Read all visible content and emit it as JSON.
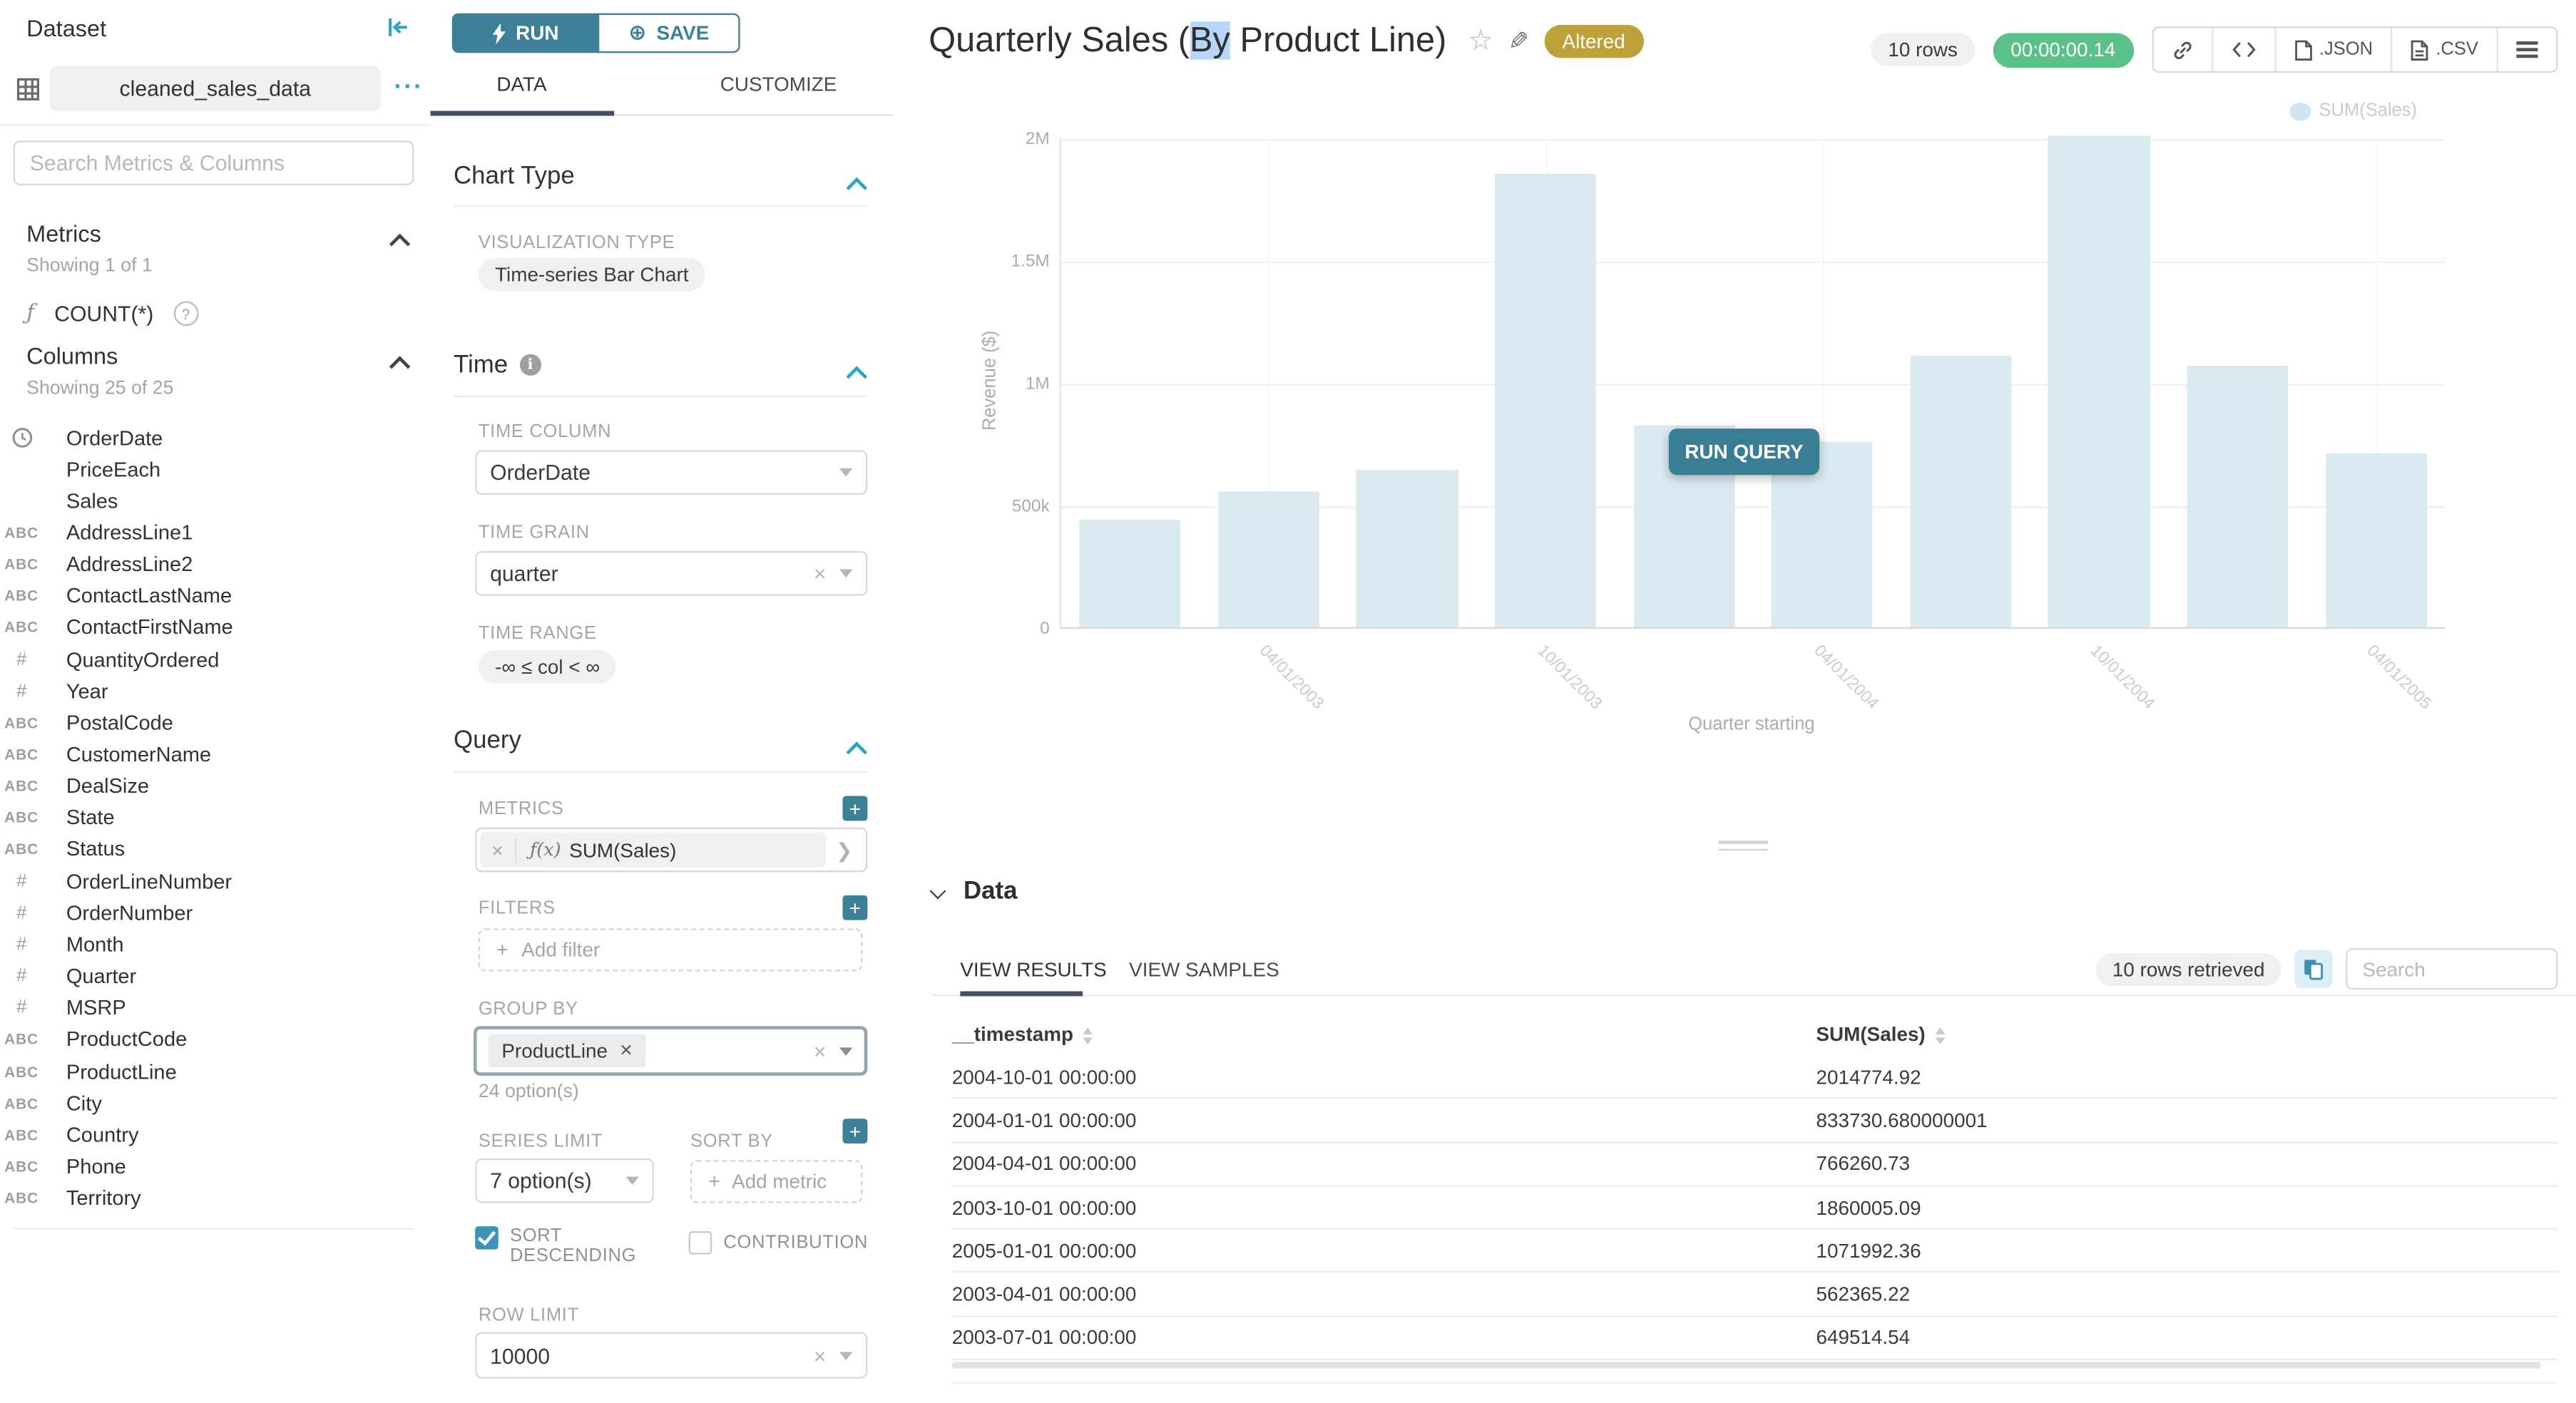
{
  "dataset_panel": {
    "title": "Dataset",
    "dataset_name": "cleaned_sales_data",
    "menu_dots": "···",
    "search_placeholder": "Search Metrics & Columns",
    "metrics": {
      "title": "Metrics",
      "showing": "Showing 1 of 1",
      "items": [
        {
          "icon": "function-icon",
          "label": "COUNT(*)"
        }
      ]
    },
    "columns": {
      "title": "Columns",
      "showing": "Showing 25 of 25",
      "items": [
        {
          "type": "time",
          "label": "OrderDate"
        },
        {
          "type": "none",
          "label": "PriceEach"
        },
        {
          "type": "none",
          "label": "Sales"
        },
        {
          "type": "str",
          "label": "AddressLine1"
        },
        {
          "type": "str",
          "label": "AddressLine2"
        },
        {
          "type": "str",
          "label": "ContactLastName"
        },
        {
          "type": "str",
          "label": "ContactFirstName"
        },
        {
          "type": "num",
          "label": "QuantityOrdered"
        },
        {
          "type": "num",
          "label": "Year"
        },
        {
          "type": "str",
          "label": "PostalCode"
        },
        {
          "type": "str",
          "label": "CustomerName"
        },
        {
          "type": "str",
          "label": "DealSize"
        },
        {
          "type": "str",
          "label": "State"
        },
        {
          "type": "str",
          "label": "Status"
        },
        {
          "type": "num",
          "label": "OrderLineNumber"
        },
        {
          "type": "num",
          "label": "OrderNumber"
        },
        {
          "type": "num",
          "label": "Month"
        },
        {
          "type": "num",
          "label": "Quarter"
        },
        {
          "type": "num",
          "label": "MSRP"
        },
        {
          "type": "str",
          "label": "ProductCode"
        },
        {
          "type": "str",
          "label": "ProductLine"
        },
        {
          "type": "str",
          "label": "City"
        },
        {
          "type": "str",
          "label": "Country"
        },
        {
          "type": "str",
          "label": "Phone"
        },
        {
          "type": "str",
          "label": "Territory"
        }
      ]
    }
  },
  "controls": {
    "run_label": "RUN",
    "save_label": "SAVE",
    "tab_data": "DATA",
    "tab_customize": "CUSTOMIZE",
    "chart_type": {
      "title": "Chart Type",
      "viz_label": "VISUALIZATION TYPE",
      "viz_value": "Time-series Bar Chart"
    },
    "time": {
      "title": "Time",
      "column_label": "TIME COLUMN",
      "column_value": "OrderDate",
      "grain_label": "TIME GRAIN",
      "grain_value": "quarter",
      "range_label": "TIME RANGE",
      "range_value": "-∞ ≤ col < ∞"
    },
    "query": {
      "title": "Query",
      "metrics_label": "METRICS",
      "metric_fx": "ƒ(x)",
      "metric_value": "SUM(Sales)",
      "filters_label": "FILTERS",
      "add_filter": "Add filter",
      "group_by_label": "GROUP BY",
      "group_by_chip": "ProductLine",
      "options_hint": "24 option(s)",
      "series_limit_label": "SERIES LIMIT",
      "series_limit_value": "7 option(s)",
      "sort_by_label": "SORT BY",
      "add_metric": "Add metric",
      "sort_descending_label": "SORT DESCENDING",
      "contribution_label": "CONTRIBUTION",
      "row_limit_label": "ROW LIMIT",
      "row_limit_value": "10000"
    }
  },
  "header": {
    "title_pre": "Quarterly Sales (",
    "title_selected": "By",
    "title_post": " Product Line)",
    "altered_badge": "Altered",
    "rows_pill": "10 rows",
    "timer": "00:00:00.14",
    "export_json": ".JSON",
    "export_csv": ".CSV"
  },
  "chart_data": {
    "type": "bar",
    "title": "Quarterly Sales (By Product Line)",
    "xlabel": "Quarter starting",
    "ylabel": "Revenue ($)",
    "legend": [
      "SUM(Sales)"
    ],
    "legend_position": "top-right",
    "grid": true,
    "ylim": [
      0,
      2000000
    ],
    "x": [
      "2003-01-01",
      "2003-04-01",
      "2003-07-01",
      "2003-10-01",
      "2004-01-01",
      "2004-04-01",
      "2004-07-01",
      "2004-10-01",
      "2005-01-01",
      "2005-04-01"
    ],
    "series": [
      {
        "name": "SUM(Sales)",
        "values": [
          445000,
          562365.22,
          649514.54,
          1860005.09,
          833730.68,
          766260.73,
          1115000,
          2014774.92,
          1071992.36,
          716000
        ]
      }
    ],
    "yticks": [
      {
        "label": "0",
        "value": 0
      },
      {
        "label": "500k",
        "value": 500000
      },
      {
        "label": "1M",
        "value": 1000000
      },
      {
        "label": "1.5M",
        "value": 1500000
      },
      {
        "label": "2M",
        "value": 2000000
      }
    ],
    "xticklabels": [
      "04/01/2003",
      "10/01/2003",
      "04/01/2004",
      "10/01/2004",
      "04/01/2005"
    ],
    "xtick_slots": [
      1,
      3,
      5,
      7,
      9
    ],
    "bar_color": "#dbe9f1",
    "run_query_label": "RUN QUERY"
  },
  "data_panel": {
    "title": "Data",
    "tab_results": "VIEW RESULTS",
    "tab_samples": "VIEW SAMPLES",
    "rows_retrieved": "10 rows retrieved",
    "search_placeholder": "Search",
    "table": {
      "columns": [
        "__timestamp",
        "SUM(Sales)"
      ],
      "rows": [
        [
          "2004-10-01 00:00:00",
          "2014774.92"
        ],
        [
          "2004-01-01 00:00:00",
          "833730.680000001"
        ],
        [
          "2004-04-01 00:00:00",
          "766260.73"
        ],
        [
          "2003-10-01 00:00:00",
          "1860005.09"
        ],
        [
          "2005-01-01 00:00:00",
          "1071992.36"
        ],
        [
          "2003-04-01 00:00:00",
          "562365.22"
        ],
        [
          "2003-07-01 00:00:00",
          "649514.54"
        ]
      ]
    }
  },
  "colors": {
    "primary": "#2ea3c4",
    "primary_dark": "#3d7f96",
    "success": "#5ac189",
    "altered": "#bfa13a",
    "tab_underline": "#474f68",
    "selection": "#b8d6fb"
  }
}
